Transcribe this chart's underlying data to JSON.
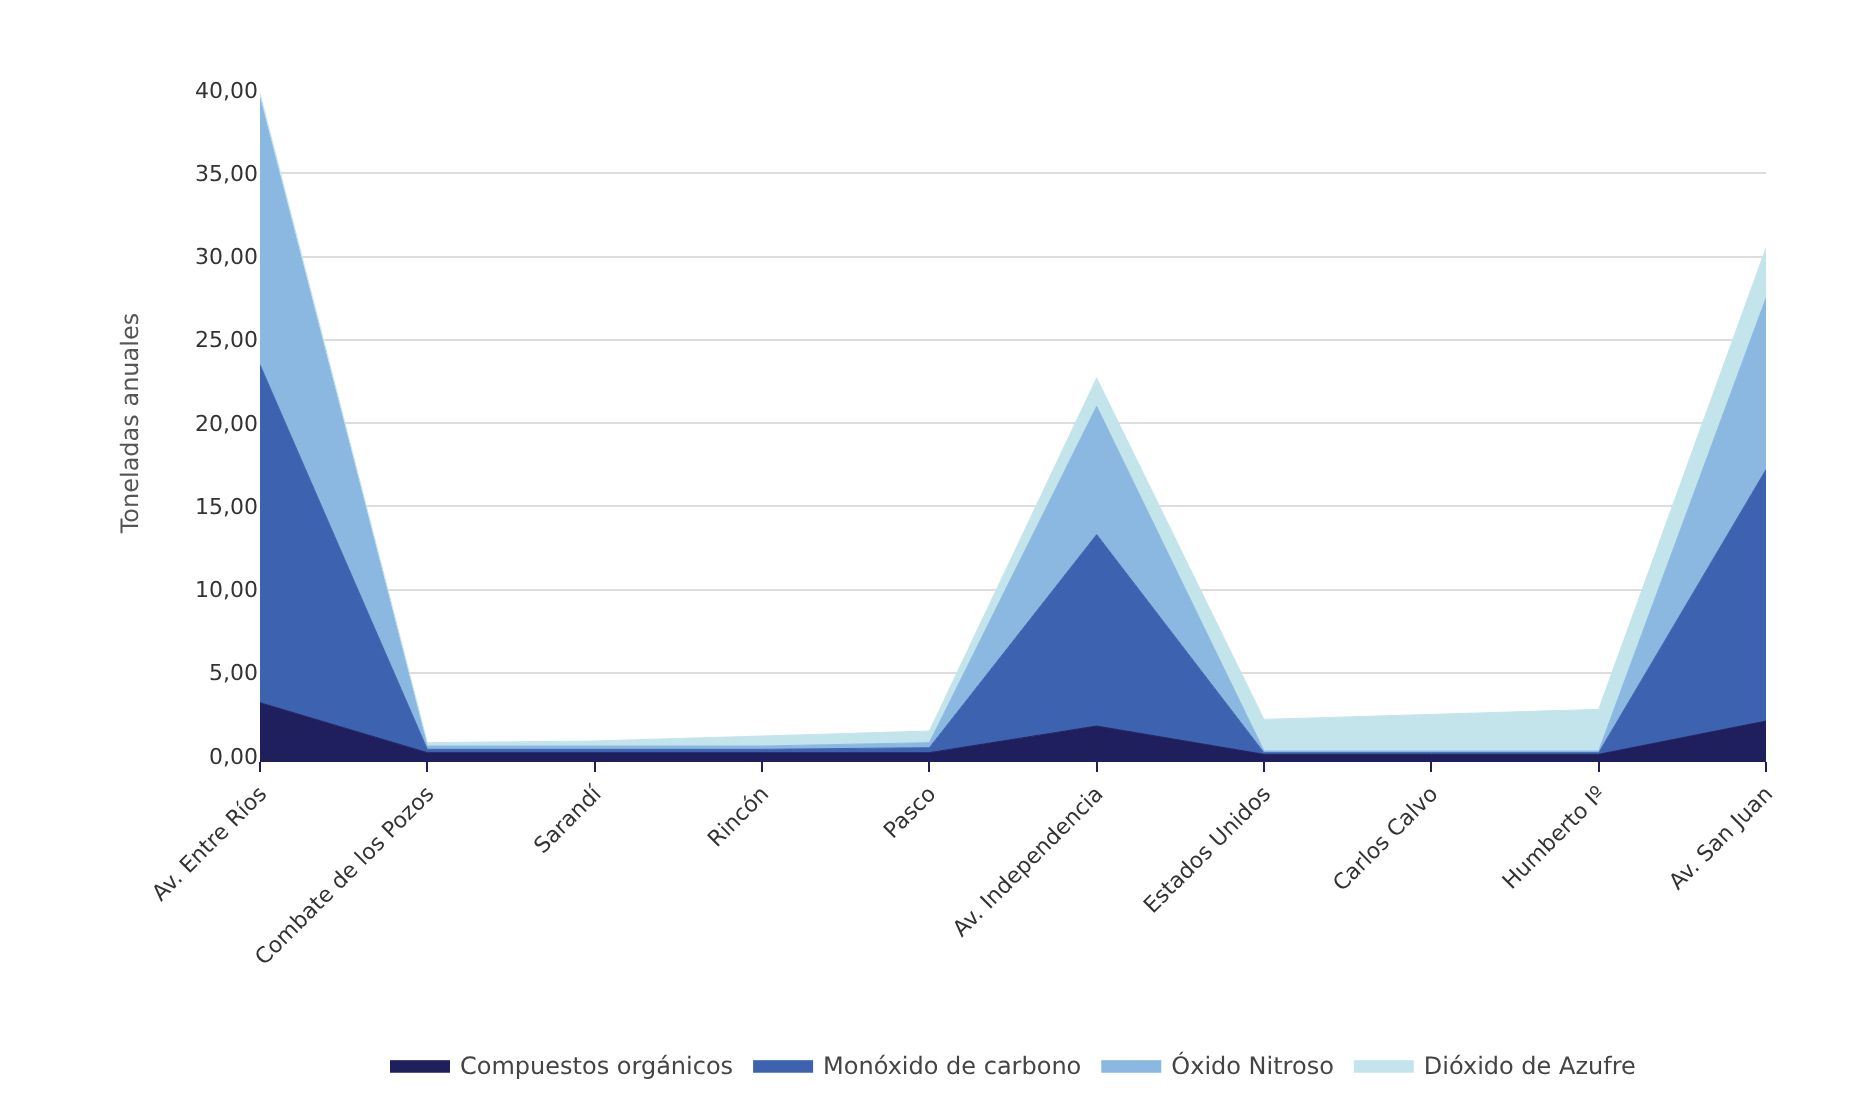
{
  "chart_data": {
    "type": "area",
    "stacked": true,
    "ylabel": "Toneladas anuales",
    "categories": [
      "Av. Entre Ríos",
      "Combate de los Pozos",
      "Sarandí",
      "Rincón",
      "Pasco",
      "Av. Independencia",
      "Estados Unidos",
      "Carlos Calvo",
      "Humberto Iº",
      "Av. San Juan"
    ],
    "series": [
      {
        "name": "Compuestos orgánicos",
        "color": "#1f1f5e",
        "values": [
          3.2,
          0.2,
          0.2,
          0.2,
          0.2,
          1.8,
          0.1,
          0.1,
          0.1,
          2.1
        ]
      },
      {
        "name": "Monóxido de carbono",
        "color": "#3d63b0",
        "values": [
          20.3,
          0.2,
          0.2,
          0.2,
          0.3,
          11.5,
          0.1,
          0.1,
          0.1,
          15.1
        ]
      },
      {
        "name": "Óxido Nitroso",
        "color": "#8ab8e0",
        "values": [
          16.0,
          0.2,
          0.2,
          0.2,
          0.3,
          7.7,
          0.1,
          0.1,
          0.1,
          10.3
        ]
      },
      {
        "name": "Dióxido de Azufre",
        "color": "#c4e4ec",
        "values": [
          0.3,
          0.2,
          0.3,
          0.6,
          0.7,
          1.7,
          1.9,
          2.2,
          2.5,
          3.0
        ]
      }
    ],
    "ylim": [
      0,
      40
    ],
    "yticks": [
      {
        "value": 0,
        "label": "0,00"
      },
      {
        "value": 5,
        "label": "5,00"
      },
      {
        "value": 10,
        "label": "10,00"
      },
      {
        "value": 15,
        "label": "15,00"
      },
      {
        "value": 20,
        "label": "20,00"
      },
      {
        "value": 25,
        "label": "25,00"
      },
      {
        "value": 30,
        "label": "30,00"
      },
      {
        "value": 35,
        "label": "35,00"
      },
      {
        "value": 40,
        "label": "40,00"
      }
    ],
    "grid": "y",
    "legend": "bottom"
  }
}
